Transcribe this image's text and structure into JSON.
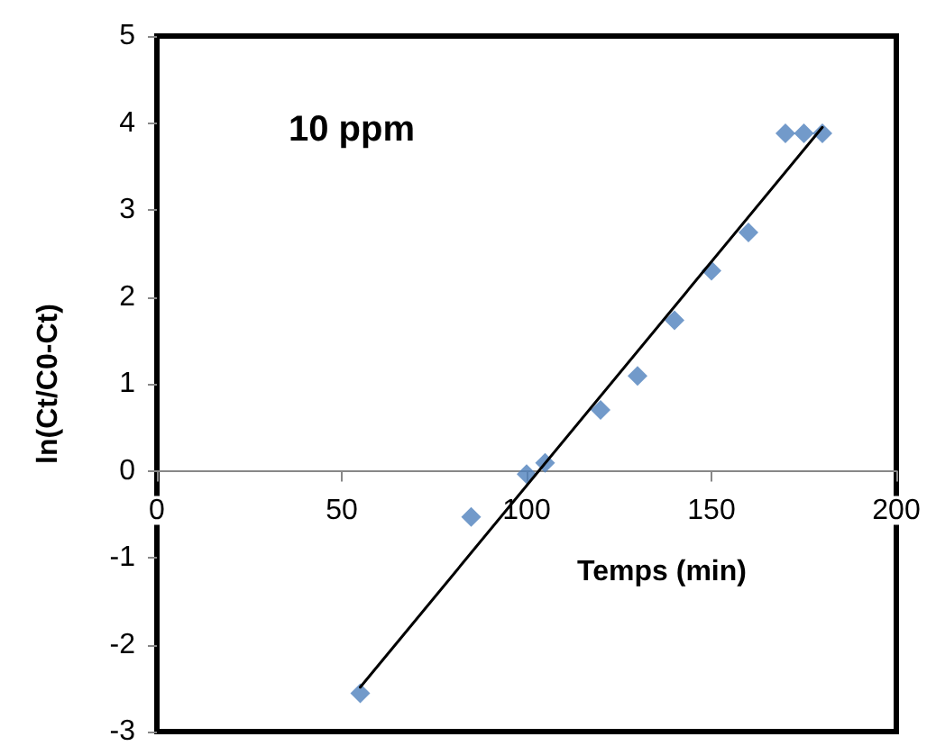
{
  "chart_data": {
    "type": "scatter",
    "xlabel": "Temps (min)",
    "ylabel": "ln(Ct/C0-Ct)",
    "annotations": [
      "10 ppm"
    ],
    "xlim": [
      0,
      200
    ],
    "xticks": [
      0,
      50,
      100,
      150,
      200
    ],
    "ylim": [
      -3,
      5
    ],
    "yticks": [
      -3,
      -2,
      -1,
      0,
      1,
      2,
      3,
      4,
      5
    ],
    "series": [
      {
        "color": "#4f81bd",
        "marker": "diamond",
        "x": [
          55,
          85,
          100,
          105,
          120,
          130,
          140,
          150,
          160,
          170,
          175,
          180
        ],
        "values": [
          -2.56,
          -0.53,
          -0.04,
          0.09,
          0.7,
          1.09,
          1.73,
          2.3,
          2.74,
          3.88,
          3.88,
          3.88
        ]
      },
      {
        "type": "line",
        "color": "#000000",
        "line_style": "solid",
        "x": [
          55,
          180
        ],
        "values": [
          -2.49,
          3.95
        ]
      }
    ]
  }
}
